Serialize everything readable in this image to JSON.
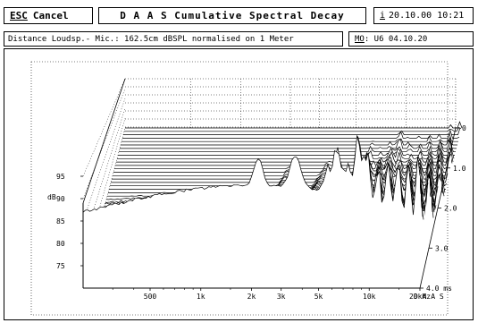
{
  "toolbar": {
    "esc_key": "ESC",
    "cancel_label": "Cancel",
    "title": "D A A S  Cumulative Spectral Decay",
    "info_key": "i",
    "datetime": "20.10.00 10:21"
  },
  "info": {
    "measurement": "Distance Loudsp.- Mic.: 162.5cm dBSPL normalised on 1 Meter",
    "memory_key": "MO",
    "memory_value": ": U6 04.10.20"
  },
  "chart_data": {
    "type": "waterfall",
    "title": "Cumulative Spectral Decay",
    "x_label": "",
    "x_ticks": [
      "500",
      "1k",
      "2k",
      "3k",
      "5k",
      "10k",
      "20kHz"
    ],
    "x_tick_freqs_hz": [
      500,
      1000,
      2000,
      3000,
      5000,
      10000,
      20000
    ],
    "x_range_hz": [
      200,
      20000
    ],
    "x_scale": "log",
    "y_label": "dB",
    "y_ticks": [
      75,
      80,
      85,
      90,
      95
    ],
    "y_range_db": [
      70,
      100
    ],
    "z_label": "ms",
    "z_ticks": [
      "0",
      "1.0",
      "2.0",
      "3.0",
      "4.0 ms"
    ],
    "z_range_ms": [
      0,
      4.0
    ],
    "slices": 48,
    "brand_label": "D A A S",
    "grid": true
  }
}
